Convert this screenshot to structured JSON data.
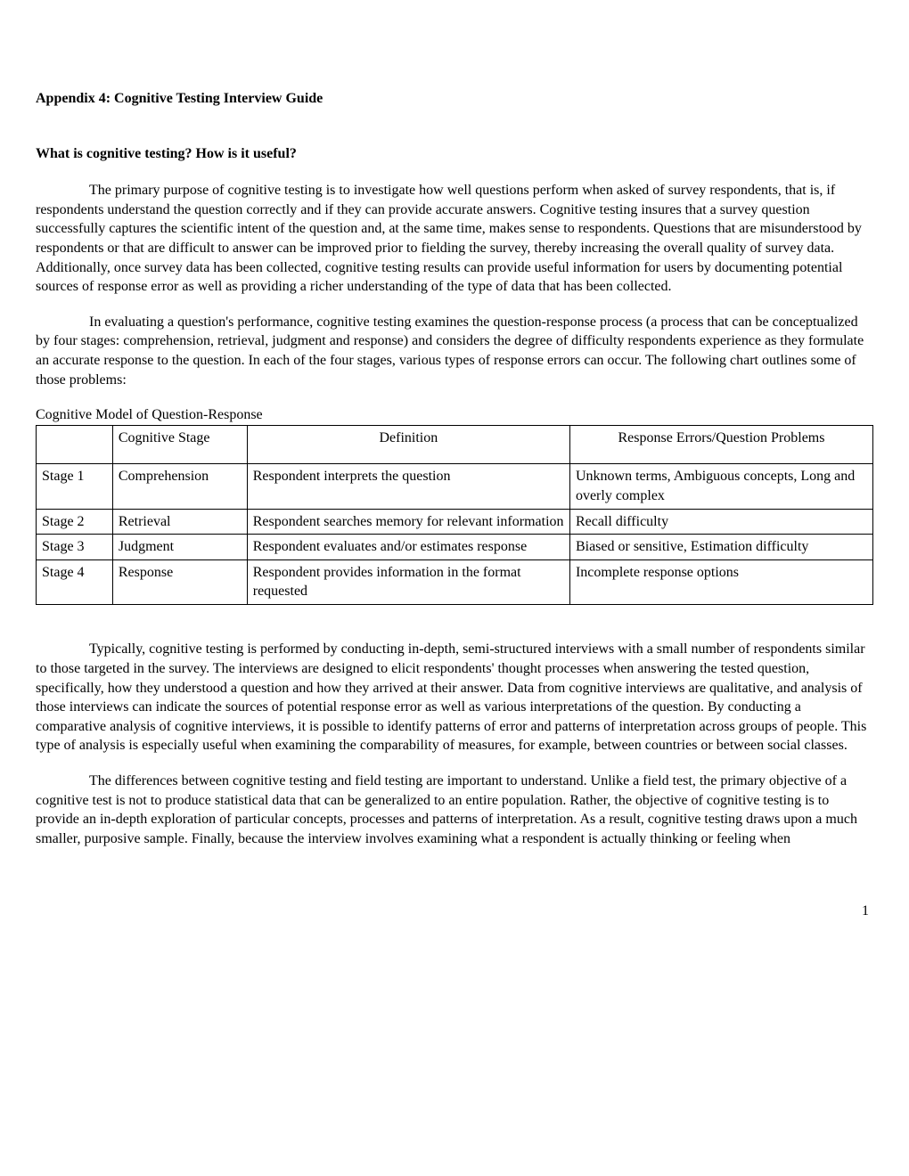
{
  "heading": "Appendix 4: Cognitive Testing Interview Guide",
  "subheading": "What is cognitive testing?  How is it useful?",
  "paragraph1": "The primary purpose of cognitive testing is to investigate how well questions perform when asked of survey respondents, that is, if respondents understand the question correctly and if they can provide accurate answers. Cognitive testing insures that a survey question successfully captures the scientific intent of the question and, at the same time, makes sense to respondents.  Questions that are misunderstood by respondents or that are difficult to answer can be improved prior to fielding the survey, thereby increasing the overall quality of survey data. Additionally, once survey data has been collected, cognitive testing results can provide useful information for users by documenting potential sources of response error as well as providing a richer understanding of the type of data that has been collected.",
  "paragraph2": "In evaluating a question's performance, cognitive testing examines the question-response process (a process that can be conceptualized by four stages: comprehension, retrieval, judgment and response) and considers the degree of difficulty respondents experience as they formulate an accurate response to the question.  In each of the four stages, various types of response errors can occur.  The following chart outlines some of those problems:",
  "table_caption": "Cognitive Model of Question-Response",
  "table": {
    "headers": {
      "col1": "",
      "col2": "Cognitive Stage",
      "col3": "Definition",
      "col4": "Response Errors/Question Problems"
    },
    "rows": [
      {
        "stage": "Stage 1",
        "cogstage": "Comprehension",
        "definition": "Respondent interprets the question",
        "errors": "Unknown terms, Ambiguous concepts, Long and overly complex"
      },
      {
        "stage": "Stage 2",
        "cogstage": "Retrieval",
        "definition": "Respondent searches memory for relevant information",
        "errors": "Recall difficulty"
      },
      {
        "stage": "Stage 3",
        "cogstage": "Judgment",
        "definition": "Respondent evaluates and/or estimates response",
        "errors": "Biased or sensitive, Estimation difficulty"
      },
      {
        "stage": "Stage 4",
        "cogstage": "Response",
        "definition": "Respondent provides information in the format requested",
        "errors": "Incomplete response options"
      }
    ]
  },
  "paragraph3": "Typically, cognitive testing is performed by conducting in-depth, semi-structured interviews with a small number of respondents similar to those targeted in the survey.  The interviews are designed to elicit respondents' thought processes when answering the tested question, specifically, how they understood a question and how they arrived at their answer.  Data from cognitive interviews are qualitative, and analysis of those interviews can indicate the sources of potential response error as well as various interpretations of the question.  By conducting a comparative analysis of cognitive interviews, it is possible to identify patterns of error and patterns of interpretation across groups of people.  This type of analysis is especially useful when examining the comparability of measures, for example, between countries or between social classes.",
  "paragraph4": "The differences between cognitive testing and field testing are important to understand.  Unlike a field test, the primary objective of a cognitive test is not to produce statistical data that can be generalized to an entire population.  Rather, the objective of cognitive testing is to provide an in-depth exploration of particular concepts, processes and patterns of interpretation. As a result, cognitive testing draws upon a much smaller, purposive sample.  Finally, because the interview involves examining what a respondent is actually thinking or feeling when",
  "page_number": "1"
}
